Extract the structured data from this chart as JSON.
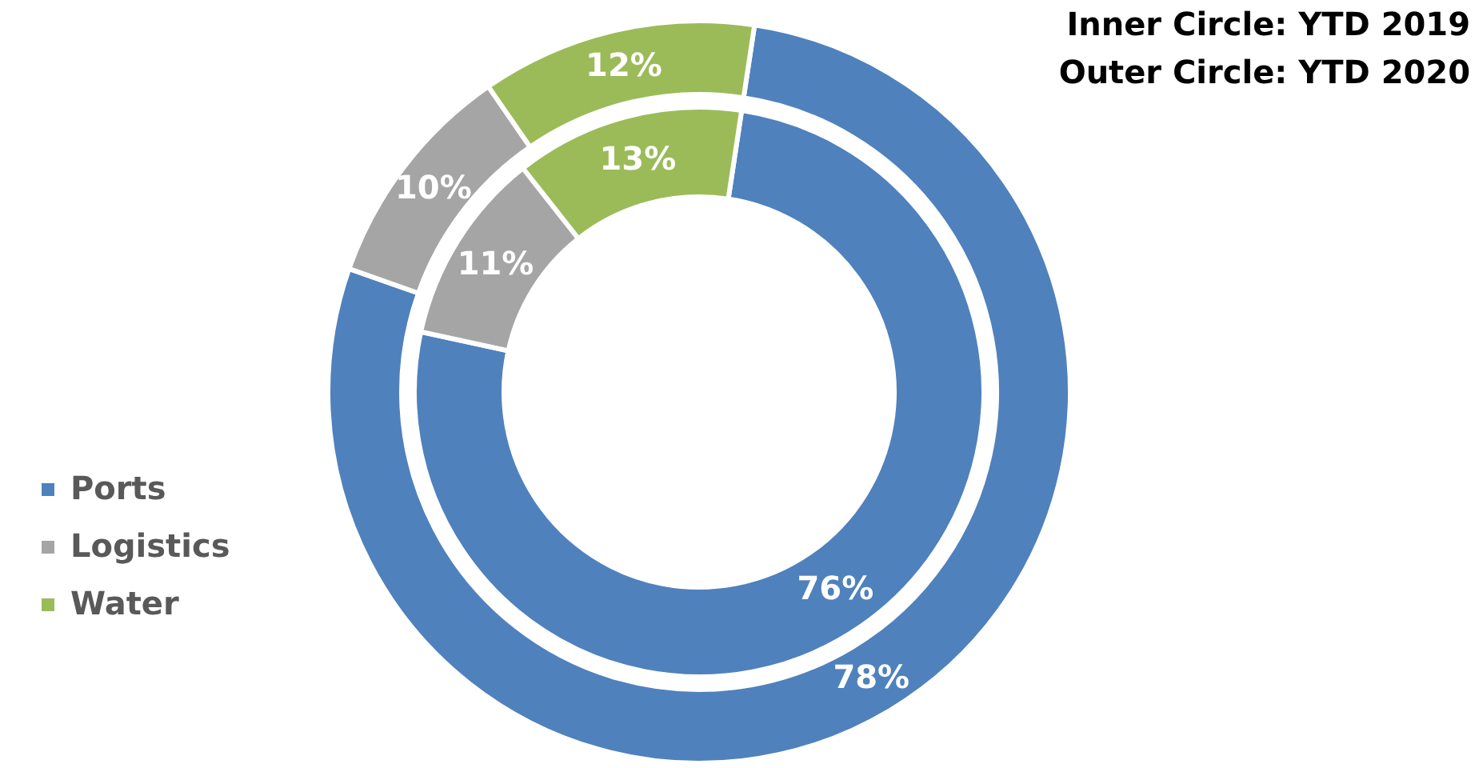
{
  "chart_data": {
    "type": "donut",
    "categories": [
      "Ports",
      "Logistics",
      "Water"
    ],
    "colors": [
      "#4f81bd",
      "#a5a5a5",
      "#9bbb59"
    ],
    "legend": "left",
    "annotations": [
      "Inner Circle: YTD 2019",
      "Outer Circle: YTD 2020"
    ],
    "series": [
      {
        "values": [
          76,
          11,
          13
        ],
        "value_labels": [
          "76%",
          "11%",
          "13%"
        ]
      },
      {
        "values": [
          78,
          10,
          12
        ],
        "value_labels": [
          "78%",
          "10%",
          "12%"
        ]
      }
    ]
  }
}
